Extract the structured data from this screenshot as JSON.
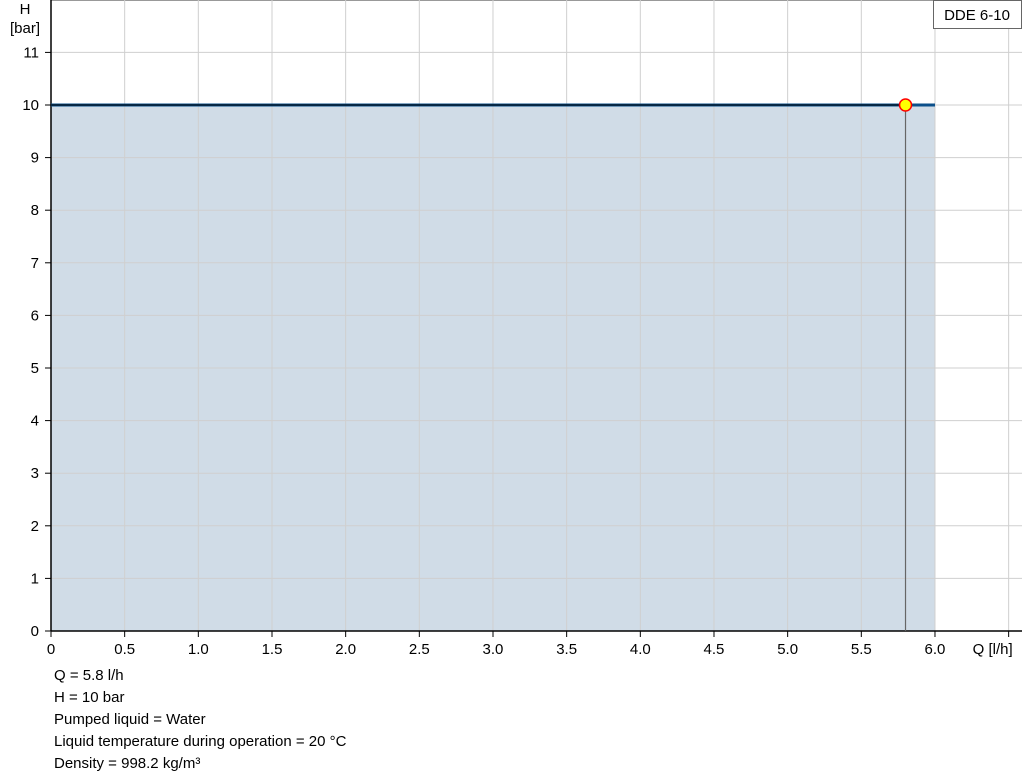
{
  "chart_data": {
    "type": "area",
    "legend_label": "DDE 6-10",
    "legend_placement": "top-right",
    "xlabel": "Q [l/h]",
    "ylabel_line1": "H",
    "ylabel_line2": "[bar]",
    "xlim": [
      0,
      6.5
    ],
    "ylim": [
      0,
      12
    ],
    "x_ticks": [
      "0",
      "0.5",
      "1.0",
      "1.5",
      "2.0",
      "2.5",
      "3.0",
      "3.5",
      "4.0",
      "4.5",
      "5.0",
      "5.5",
      "6.0"
    ],
    "y_ticks": [
      "0",
      "1",
      "2",
      "3",
      "4",
      "5",
      "6",
      "7",
      "8",
      "9",
      "10",
      "11"
    ],
    "grid": true,
    "series": [
      {
        "x": [
          0,
          6.0
        ],
        "y": [
          10,
          10
        ],
        "color": "#0b4f8a",
        "fill": "#d0dce7"
      }
    ],
    "duty_point": {
      "x": 5.8,
      "y": 10,
      "fill": "#ffff00",
      "stroke": "#ff0000"
    }
  },
  "info": [
    "Q = 5.8 l/h",
    "H = 10 bar",
    "Pumped liquid = Water",
    "Liquid temperature during operation = 20 °C",
    "Density = 998.2 kg/m³"
  ]
}
